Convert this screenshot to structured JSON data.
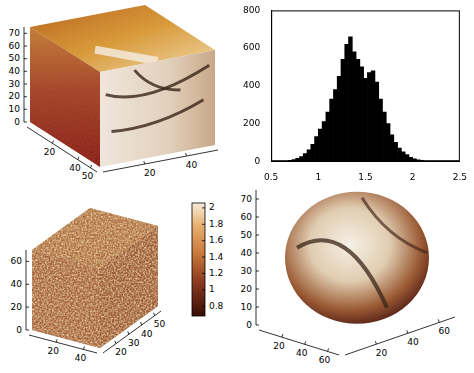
{
  "chart_data": [
    {
      "type": "cube",
      "xlim": [
        0,
        55
      ],
      "xticks": [
        20,
        40,
        50
      ],
      "ylim": [
        0,
        55
      ],
      "yticks": [
        20,
        40
      ],
      "zlim": [
        0,
        75
      ],
      "zticks": [
        0,
        10,
        20,
        30,
        40,
        50,
        60,
        70
      ]
    },
    {
      "type": "histogram",
      "bins": [
        0.68,
        0.72,
        0.76,
        0.8,
        0.84,
        0.88,
        0.92,
        0.96,
        1.0,
        1.04,
        1.08,
        1.12,
        1.16,
        1.2,
        1.24,
        1.28,
        1.32,
        1.36,
        1.4,
        1.44,
        1.48,
        1.52,
        1.56,
        1.6,
        1.64,
        1.68,
        1.72,
        1.76,
        1.8,
        1.84,
        1.88,
        1.92,
        1.96,
        2.0,
        2.04,
        2.08,
        2.12
      ],
      "counts": [
        5,
        8,
        15,
        25,
        40,
        60,
        90,
        130,
        170,
        210,
        260,
        330,
        380,
        450,
        540,
        620,
        660,
        580,
        540,
        500,
        440,
        470,
        480,
        420,
        330,
        260,
        200,
        140,
        100,
        70,
        50,
        35,
        20,
        12,
        7,
        3
      ],
      "color": "#000000",
      "grid": false,
      "xlim": [
        0.5,
        2.5
      ],
      "xticks": [
        0.5,
        1,
        1.5,
        2,
        2.5
      ],
      "ylim": [
        0,
        800
      ],
      "yticks": [
        0,
        200,
        400,
        600,
        800
      ]
    },
    {
      "type": "cube",
      "xlim": [
        0,
        50
      ],
      "xticks": [
        20,
        40
      ],
      "ylim": [
        10,
        55
      ],
      "yticks": [
        20,
        30,
        40,
        50
      ],
      "zlim": [
        0,
        70
      ],
      "zticks": [
        0,
        20,
        40,
        60
      ],
      "colorbar": {
        "range": [
          0.68,
          2.06
        ],
        "ticks": [
          0.8,
          1,
          1.2,
          1.4,
          1.6,
          1.8,
          2
        ]
      }
    },
    {
      "type": "sphere",
      "xlim": [
        0,
        70
      ],
      "xticks": [
        20,
        40,
        60
      ],
      "ylim": [
        0,
        70
      ],
      "yticks": [
        20,
        40,
        60
      ],
      "zlim": [
        0,
        75
      ],
      "zticks": [
        0,
        10,
        20,
        30,
        40,
        50,
        60,
        70
      ]
    }
  ]
}
